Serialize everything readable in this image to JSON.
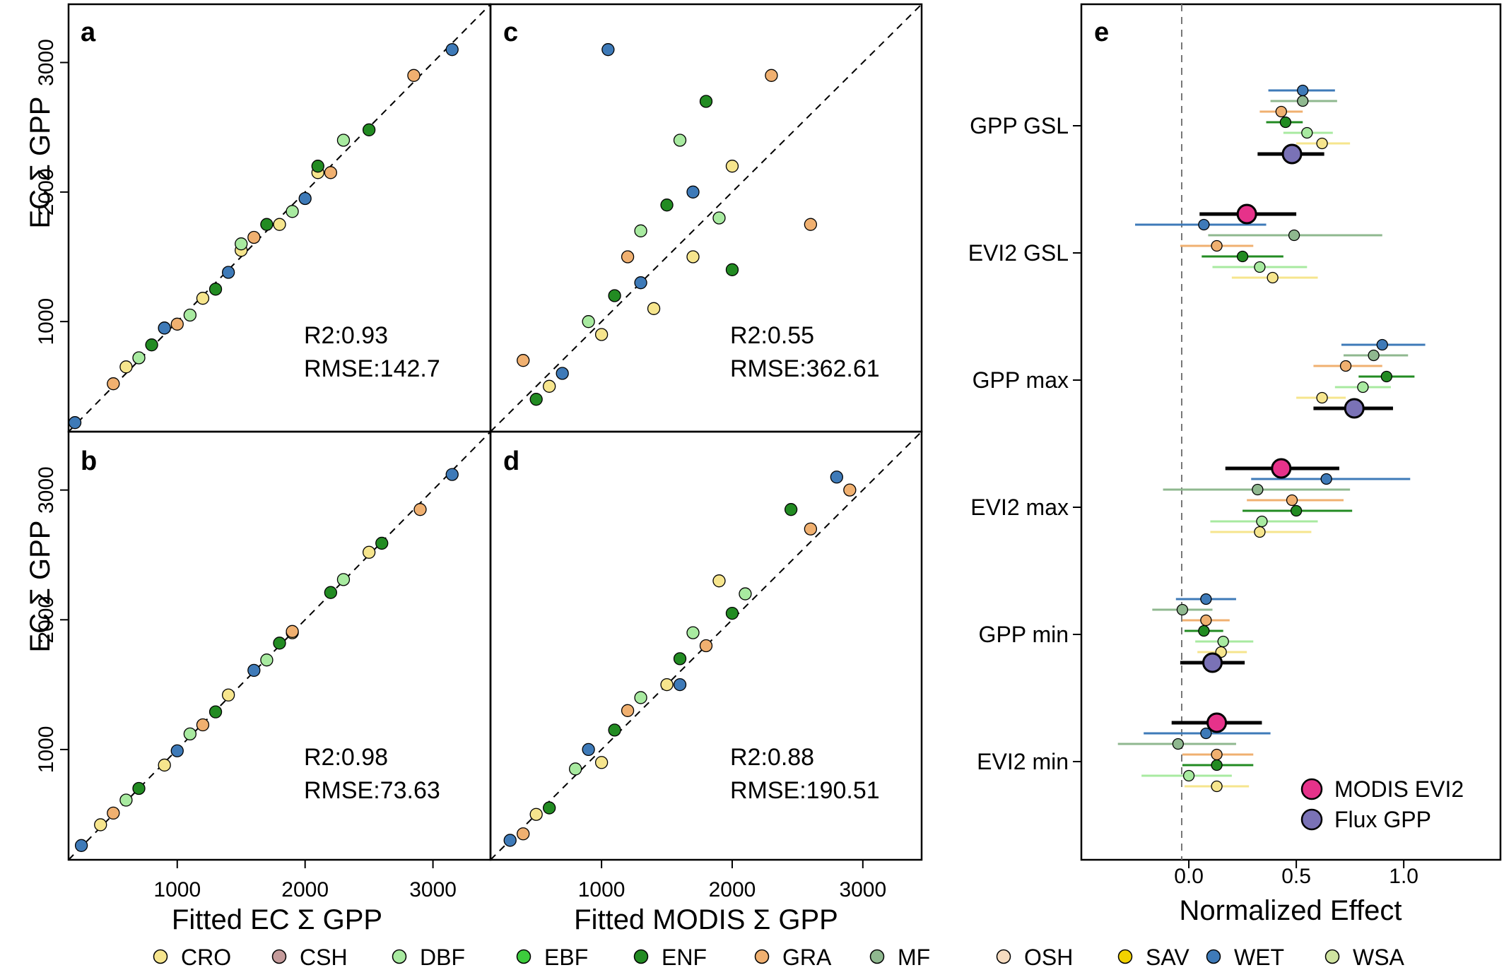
{
  "figure": {
    "panels": {
      "a": {
        "letter": "a",
        "r2": "R2:0.93",
        "rmse": "RMSE:142.7"
      },
      "b": {
        "letter": "b",
        "r2": "R2:0.98",
        "rmse": "RMSE:73.63"
      },
      "c": {
        "letter": "c",
        "r2": "R2:0.55",
        "rmse": "RMSE:362.61"
      },
      "d": {
        "letter": "d",
        "r2": "R2:0.88",
        "rmse": "RMSE:190.51"
      },
      "e": {
        "letter": "e"
      }
    },
    "ylabel_top": "EC  Σ GPP",
    "ylabel_bottom": "EC  Σ GPP",
    "xlabel_left": "Fitted EC  Σ GPP",
    "xlabel_mid": "Fitted MODIS  Σ GPP",
    "xlabel_right": "Normalized Effect"
  },
  "chart_data": [
    {
      "type": "scatter",
      "panel": "a",
      "xlim": [
        150,
        3450
      ],
      "ylim": [
        150,
        3450
      ],
      "yticks": [
        1000,
        2000,
        3000
      ],
      "xticks": [],
      "reference_line": "1:1 dashed",
      "series": [
        {
          "name": "CRO",
          "x": [
            600,
            900,
            1200,
            1500,
            1800,
            2100
          ],
          "y": [
            650,
            950,
            1180,
            1550,
            1750,
            2150
          ]
        },
        {
          "name": "DBF",
          "x": [
            700,
            1100,
            1500,
            1900,
            2300
          ],
          "y": [
            720,
            1050,
            1600,
            1850,
            2400
          ]
        },
        {
          "name": "ENF",
          "x": [
            800,
            1300,
            1700,
            2100,
            2500
          ],
          "y": [
            820,
            1250,
            1750,
            2200,
            2480
          ]
        },
        {
          "name": "GRA",
          "x": [
            500,
            1000,
            1600,
            2200,
            2850
          ],
          "y": [
            520,
            980,
            1650,
            2150,
            2900
          ]
        },
        {
          "name": "WET",
          "x": [
            200,
            900,
            1400,
            2000,
            3150
          ],
          "y": [
            220,
            950,
            1380,
            1950,
            3100
          ]
        }
      ]
    },
    {
      "type": "scatter",
      "panel": "b",
      "xlim": [
        150,
        3450
      ],
      "ylim": [
        150,
        3450
      ],
      "xticks": [
        1000,
        2000,
        3000
      ],
      "yticks": [
        1000,
        2000,
        3000
      ],
      "reference_line": "1:1 dashed",
      "series": [
        {
          "name": "CRO",
          "x": [
            400,
            900,
            1400,
            1900,
            2500
          ],
          "y": [
            420,
            880,
            1420,
            1900,
            2520
          ]
        },
        {
          "name": "DBF",
          "x": [
            600,
            1100,
            1700,
            2300
          ],
          "y": [
            610,
            1120,
            1690,
            2310
          ]
        },
        {
          "name": "ENF",
          "x": [
            700,
            1300,
            1800,
            2200,
            2600
          ],
          "y": [
            700,
            1290,
            1820,
            2210,
            2590
          ]
        },
        {
          "name": "GRA",
          "x": [
            500,
            1200,
            1900,
            2900
          ],
          "y": [
            510,
            1190,
            1910,
            2850
          ]
        },
        {
          "name": "WET",
          "x": [
            250,
            1000,
            1600,
            3150
          ],
          "y": [
            260,
            990,
            1610,
            3120
          ]
        }
      ]
    },
    {
      "type": "scatter",
      "panel": "c",
      "xlim": [
        150,
        3450
      ],
      "ylim": [
        150,
        3450
      ],
      "xticks": [],
      "yticks": [],
      "reference_line": "1:1 dashed",
      "series": [
        {
          "name": "CRO",
          "x": [
            600,
            1000,
            1400,
            1700,
            2000
          ],
          "y": [
            500,
            900,
            1100,
            1500,
            2200
          ]
        },
        {
          "name": "DBF",
          "x": [
            900,
            1300,
            1600,
            1900
          ],
          "y": [
            1000,
            1700,
            2400,
            1800
          ]
        },
        {
          "name": "ENF",
          "x": [
            500,
            1100,
            1500,
            1800,
            2000
          ],
          "y": [
            400,
            1200,
            1900,
            2700,
            1400
          ]
        },
        {
          "name": "GRA",
          "x": [
            400,
            1200,
            2300,
            2600
          ],
          "y": [
            700,
            1500,
            2900,
            1750
          ]
        },
        {
          "name": "WET",
          "x": [
            700,
            1300,
            1700,
            1050
          ],
          "y": [
            600,
            1300,
            2000,
            3100
          ]
        }
      ]
    },
    {
      "type": "scatter",
      "panel": "d",
      "xlim": [
        150,
        3450
      ],
      "ylim": [
        150,
        3450
      ],
      "xticks": [
        1000,
        2000,
        3000
      ],
      "yticks": [],
      "reference_line": "1:1 dashed",
      "series": [
        {
          "name": "CRO",
          "x": [
            500,
            1000,
            1500,
            1900
          ],
          "y": [
            500,
            900,
            1500,
            2300
          ]
        },
        {
          "name": "DBF",
          "x": [
            800,
            1300,
            1700,
            2100
          ],
          "y": [
            850,
            1400,
            1900,
            2200
          ]
        },
        {
          "name": "ENF",
          "x": [
            600,
            1100,
            1600,
            2000,
            2450
          ],
          "y": [
            550,
            1150,
            1700,
            2050,
            2850
          ]
        },
        {
          "name": "GRA",
          "x": [
            400,
            1200,
            1800,
            2600,
            2900
          ],
          "y": [
            350,
            1300,
            1800,
            2700,
            3000
          ]
        },
        {
          "name": "WET",
          "x": [
            300,
            900,
            1600,
            2800
          ],
          "y": [
            300,
            1000,
            1500,
            3100
          ]
        }
      ]
    },
    {
      "type": "forest",
      "panel": "e",
      "xlim": [
        -0.5,
        1.45
      ],
      "xticks": [
        "0.0",
        "0.5",
        "1.0"
      ],
      "reference_line": "x = 0 dashed",
      "categories": [
        "GPP GSL",
        "EVI2 GSL",
        "GPP max",
        "EVI2 max",
        "GPP min",
        "EVI2 min"
      ],
      "summary": [
        {
          "category": "GPP GSL",
          "series": "Flux GPP",
          "value": 0.48,
          "lo": 0.32,
          "hi": 0.63
        },
        {
          "category": "EVI2 GSL",
          "series": "MODIS EVI2",
          "value": 0.27,
          "lo": 0.05,
          "hi": 0.5
        },
        {
          "category": "GPP max",
          "series": "Flux GPP",
          "value": 0.77,
          "lo": 0.58,
          "hi": 0.95
        },
        {
          "category": "EVI2 max",
          "series": "MODIS EVI2",
          "value": 0.43,
          "lo": 0.17,
          "hi": 0.7
        },
        {
          "category": "GPP min",
          "series": "Flux GPP",
          "value": 0.11,
          "lo": -0.04,
          "hi": 0.26
        },
        {
          "category": "EVI2 min",
          "series": "MODIS EVI2",
          "value": 0.13,
          "lo": -0.08,
          "hi": 0.34
        }
      ],
      "biomes": [
        {
          "category": "GPP GSL",
          "name": "WET",
          "value": 0.53,
          "lo": 0.37,
          "hi": 0.68
        },
        {
          "category": "GPP GSL",
          "name": "MF",
          "value": 0.53,
          "lo": 0.38,
          "hi": 0.69
        },
        {
          "category": "GPP GSL",
          "name": "GRA",
          "value": 0.43,
          "lo": 0.33,
          "hi": 0.53
        },
        {
          "category": "GPP GSL",
          "name": "ENF",
          "value": 0.45,
          "lo": 0.36,
          "hi": 0.53
        },
        {
          "category": "GPP GSL",
          "name": "DBF",
          "value": 0.55,
          "lo": 0.44,
          "hi": 0.67
        },
        {
          "category": "GPP GSL",
          "name": "CRO",
          "value": 0.62,
          "lo": 0.5,
          "hi": 0.75
        },
        {
          "category": "EVI2 GSL",
          "name": "WET",
          "value": 0.07,
          "lo": -0.25,
          "hi": 0.36
        },
        {
          "category": "EVI2 GSL",
          "name": "MF",
          "value": 0.49,
          "lo": 0.09,
          "hi": 0.9
        },
        {
          "category": "EVI2 GSL",
          "name": "GRA",
          "value": 0.13,
          "lo": -0.04,
          "hi": 0.3
        },
        {
          "category": "EVI2 GSL",
          "name": "ENF",
          "value": 0.25,
          "lo": 0.06,
          "hi": 0.44
        },
        {
          "category": "EVI2 GSL",
          "name": "DBF",
          "value": 0.33,
          "lo": 0.11,
          "hi": 0.55
        },
        {
          "category": "EVI2 GSL",
          "name": "CRO",
          "value": 0.39,
          "lo": 0.2,
          "hi": 0.6
        },
        {
          "category": "GPP max",
          "name": "WET",
          "value": 0.9,
          "lo": 0.71,
          "hi": 1.1
        },
        {
          "category": "GPP max",
          "name": "MF",
          "value": 0.86,
          "lo": 0.72,
          "hi": 1.02
        },
        {
          "category": "GPP max",
          "name": "GRA",
          "value": 0.73,
          "lo": 0.58,
          "hi": 0.9
        },
        {
          "category": "GPP max",
          "name": "ENF",
          "value": 0.92,
          "lo": 0.79,
          "hi": 1.05
        },
        {
          "category": "GPP max",
          "name": "DBF",
          "value": 0.81,
          "lo": 0.68,
          "hi": 0.94
        },
        {
          "category": "GPP max",
          "name": "CRO",
          "value": 0.62,
          "lo": 0.5,
          "hi": 0.73
        },
        {
          "category": "EVI2 max",
          "name": "WET",
          "value": 0.64,
          "lo": 0.29,
          "hi": 1.03
        },
        {
          "category": "EVI2 max",
          "name": "MF",
          "value": 0.32,
          "lo": -0.12,
          "hi": 0.75
        },
        {
          "category": "EVI2 max",
          "name": "GRA",
          "value": 0.48,
          "lo": 0.27,
          "hi": 0.72
        },
        {
          "category": "EVI2 max",
          "name": "ENF",
          "value": 0.5,
          "lo": 0.25,
          "hi": 0.76
        },
        {
          "category": "EVI2 max",
          "name": "DBF",
          "value": 0.34,
          "lo": 0.1,
          "hi": 0.6
        },
        {
          "category": "EVI2 max",
          "name": "CRO",
          "value": 0.33,
          "lo": 0.1,
          "hi": 0.57
        },
        {
          "category": "GPP min",
          "name": "WET",
          "value": 0.08,
          "lo": -0.06,
          "hi": 0.22
        },
        {
          "category": "GPP min",
          "name": "MF",
          "value": -0.03,
          "lo": -0.17,
          "hi": 0.11
        },
        {
          "category": "GPP min",
          "name": "GRA",
          "value": 0.08,
          "lo": -0.03,
          "hi": 0.19
        },
        {
          "category": "GPP min",
          "name": "ENF",
          "value": 0.07,
          "lo": -0.02,
          "hi": 0.16
        },
        {
          "category": "GPP min",
          "name": "DBF",
          "value": 0.16,
          "lo": 0.03,
          "hi": 0.3
        },
        {
          "category": "GPP min",
          "name": "CRO",
          "value": 0.15,
          "lo": 0.04,
          "hi": 0.27
        },
        {
          "category": "EVI2 min",
          "name": "WET",
          "value": 0.08,
          "lo": -0.21,
          "hi": 0.38
        },
        {
          "category": "EVI2 min",
          "name": "MF",
          "value": -0.05,
          "lo": -0.33,
          "hi": 0.22
        },
        {
          "category": "EVI2 min",
          "name": "GRA",
          "value": 0.13,
          "lo": -0.03,
          "hi": 0.3
        },
        {
          "category": "EVI2 min",
          "name": "ENF",
          "value": 0.13,
          "lo": -0.03,
          "hi": 0.3
        },
        {
          "category": "EVI2 min",
          "name": "DBF",
          "value": 0.0,
          "lo": -0.22,
          "hi": 0.2
        },
        {
          "category": "EVI2 min",
          "name": "CRO",
          "value": 0.13,
          "lo": -0.02,
          "hi": 0.28
        }
      ],
      "legend": [
        {
          "name": "MODIS EVI2",
          "color": "#e6328a"
        },
        {
          "name": "Flux GPP",
          "color": "#7a72b6"
        }
      ]
    }
  ],
  "biome_legend": [
    {
      "name": "CRO",
      "color": "#f6e58d"
    },
    {
      "name": "CSH",
      "color": "#c49a9a"
    },
    {
      "name": "DBF",
      "color": "#a8eaa0"
    },
    {
      "name": "EBF",
      "color": "#3ccc3c"
    },
    {
      "name": "ENF",
      "color": "#228b22"
    },
    {
      "name": "GRA",
      "color": "#f0b070"
    },
    {
      "name": "MF",
      "color": "#8fb88f"
    },
    {
      "name": "OSH",
      "color": "#f6dcc0"
    },
    {
      "name": "SAV",
      "color": "#f2d200"
    },
    {
      "name": "WET",
      "color": "#3e7ab8"
    },
    {
      "name": "WSA",
      "color": "#cfe3a0"
    }
  ]
}
